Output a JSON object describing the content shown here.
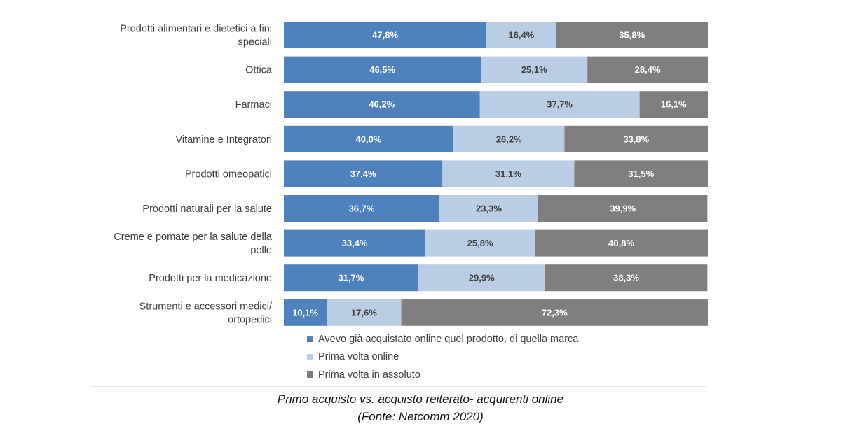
{
  "colors": {
    "series": [
      "#4f81bd",
      "#b9cde5",
      "#7f7f7f"
    ],
    "label_dark_bg": "#ffffff",
    "label_light_bg": "#404040"
  },
  "chart_data": {
    "type": "bar",
    "orientation": "horizontal",
    "stacked": true,
    "categories": [
      [
        "Prodotti alimentari e dietetici a fini",
        "speciali"
      ],
      [
        "Ottica"
      ],
      [
        "Farmaci"
      ],
      [
        "Vitamine e Integratori"
      ],
      [
        "Prodotti omeopatici"
      ],
      [
        "Prodotti naturali per la salute"
      ],
      [
        "Creme e pomate per la salute della",
        "pelle"
      ],
      [
        "Prodotti per la medicazione"
      ],
      [
        "Strumenti e accessori medici/",
        "ortopedici"
      ]
    ],
    "series": [
      {
        "name": "Avevo già acquistato online quel prodotto, di quella marca",
        "values": [
          47.8,
          46.5,
          46.2,
          40.0,
          37.4,
          36.7,
          33.4,
          31.7,
          10.1
        ],
        "labels": [
          "47,8%",
          "46,5%",
          "46,2%",
          "40,0%",
          "37,4%",
          "36,7%",
          "33,4%",
          "31,7%",
          "10,1%"
        ]
      },
      {
        "name": "Prima volta online",
        "values": [
          16.4,
          25.1,
          37.7,
          26.2,
          31.1,
          23.3,
          25.8,
          29.9,
          17.6
        ],
        "labels": [
          "16,4%",
          "25,1%",
          "37,7%",
          "26,2%",
          "31,1%",
          "23,3%",
          "25,8%",
          "29,9%",
          "17,6%"
        ]
      },
      {
        "name": "Prima volta in assoluto",
        "values": [
          35.8,
          28.4,
          16.1,
          33.8,
          31.5,
          39.9,
          40.8,
          38.3,
          72.3
        ],
        "labels": [
          "35,8%",
          "28,4%",
          "16,1%",
          "33,8%",
          "31,5%",
          "39,9%",
          "40,8%",
          "38,3%",
          "72,3%"
        ]
      }
    ],
    "xlim": [
      0,
      100
    ],
    "legend_position": "bottom",
    "grid": false
  },
  "legend": {
    "items": [
      "Avevo già acquistato online quel prodotto, di quella marca",
      "Prima volta online",
      "Prima volta in assoluto"
    ]
  },
  "caption": {
    "line1": "Primo acquisto vs. acquisto reiterato- acquirenti online",
    "line2": "(Fonte: Netcomm 2020)"
  }
}
